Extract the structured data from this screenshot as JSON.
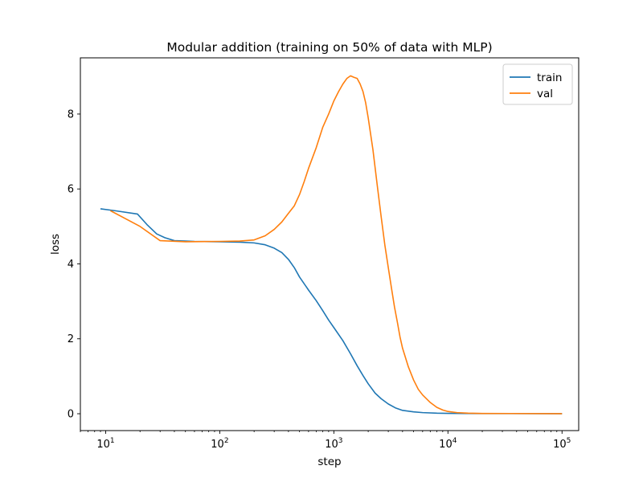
{
  "chart_data": {
    "type": "line",
    "title": "Modular addition (training on 50% of data with MLP)",
    "xlabel": "step",
    "ylabel": "loss",
    "xscale": "log",
    "xlim": [
      6,
      140000
    ],
    "ylim": [
      -0.45,
      9.5
    ],
    "xticks": [
      {
        "value": 10,
        "base": "10",
        "exp": "1"
      },
      {
        "value": 100,
        "base": "10",
        "exp": "2"
      },
      {
        "value": 1000,
        "base": "10",
        "exp": "3"
      },
      {
        "value": 10000,
        "base": "10",
        "exp": "4"
      },
      {
        "value": 100000,
        "base": "10",
        "exp": "5"
      }
    ],
    "yticks": [
      {
        "value": 0,
        "label": "0"
      },
      {
        "value": 2,
        "label": "2"
      },
      {
        "value": 4,
        "label": "4"
      },
      {
        "value": 6,
        "label": "6"
      },
      {
        "value": 8,
        "label": "8"
      }
    ],
    "legend": {
      "position": "top-right"
    },
    "grid": false,
    "series": [
      {
        "name": "train",
        "color": "#1f77b4",
        "points": [
          [
            9,
            5.47
          ],
          [
            12,
            5.42
          ],
          [
            19,
            5.33
          ],
          [
            23,
            5.05
          ],
          [
            28,
            4.8
          ],
          [
            33,
            4.7
          ],
          [
            40,
            4.62
          ],
          [
            50,
            4.61
          ],
          [
            60,
            4.6
          ],
          [
            100,
            4.59
          ],
          [
            150,
            4.58
          ],
          [
            200,
            4.56
          ],
          [
            250,
            4.51
          ],
          [
            300,
            4.42
          ],
          [
            350,
            4.3
          ],
          [
            400,
            4.12
          ],
          [
            450,
            3.9
          ],
          [
            500,
            3.65
          ],
          [
            600,
            3.3
          ],
          [
            700,
            3.02
          ],
          [
            800,
            2.75
          ],
          [
            900,
            2.5
          ],
          [
            1000,
            2.3
          ],
          [
            1200,
            1.95
          ],
          [
            1400,
            1.6
          ],
          [
            1600,
            1.28
          ],
          [
            1800,
            1.02
          ],
          [
            2000,
            0.8
          ],
          [
            2300,
            0.55
          ],
          [
            2600,
            0.4
          ],
          [
            3000,
            0.26
          ],
          [
            3500,
            0.15
          ],
          [
            4000,
            0.09
          ],
          [
            5000,
            0.05
          ],
          [
            6000,
            0.03
          ],
          [
            8000,
            0.015
          ],
          [
            10000,
            0.01
          ],
          [
            20000,
            0.005
          ],
          [
            100000,
            0.002
          ]
        ]
      },
      {
        "name": "val",
        "color": "#ff7f0e",
        "points": [
          [
            11,
            5.42
          ],
          [
            20,
            5.0
          ],
          [
            30,
            4.62
          ],
          [
            50,
            4.59
          ],
          [
            100,
            4.6
          ],
          [
            150,
            4.61
          ],
          [
            200,
            4.64
          ],
          [
            250,
            4.75
          ],
          [
            300,
            4.92
          ],
          [
            350,
            5.12
          ],
          [
            400,
            5.35
          ],
          [
            450,
            5.55
          ],
          [
            500,
            5.85
          ],
          [
            550,
            6.2
          ],
          [
            600,
            6.55
          ],
          [
            700,
            7.1
          ],
          [
            800,
            7.65
          ],
          [
            900,
            8.0
          ],
          [
            1000,
            8.35
          ],
          [
            1100,
            8.6
          ],
          [
            1200,
            8.8
          ],
          [
            1300,
            8.95
          ],
          [
            1400,
            9.02
          ],
          [
            1500,
            8.98
          ],
          [
            1600,
            8.95
          ],
          [
            1700,
            8.8
          ],
          [
            1800,
            8.6
          ],
          [
            1900,
            8.3
          ],
          [
            2000,
            7.9
          ],
          [
            2200,
            7.05
          ],
          [
            2400,
            6.1
          ],
          [
            2600,
            5.25
          ],
          [
            2800,
            4.5
          ],
          [
            3000,
            3.9
          ],
          [
            3200,
            3.35
          ],
          [
            3400,
            2.85
          ],
          [
            3600,
            2.45
          ],
          [
            3800,
            2.05
          ],
          [
            4000,
            1.75
          ],
          [
            4500,
            1.25
          ],
          [
            5000,
            0.9
          ],
          [
            5500,
            0.65
          ],
          [
            6000,
            0.5
          ],
          [
            7000,
            0.3
          ],
          [
            8000,
            0.17
          ],
          [
            9000,
            0.1
          ],
          [
            10000,
            0.06
          ],
          [
            12000,
            0.03
          ],
          [
            15000,
            0.015
          ],
          [
            20000,
            0.008
          ],
          [
            100000,
            0.002
          ]
        ]
      }
    ]
  }
}
